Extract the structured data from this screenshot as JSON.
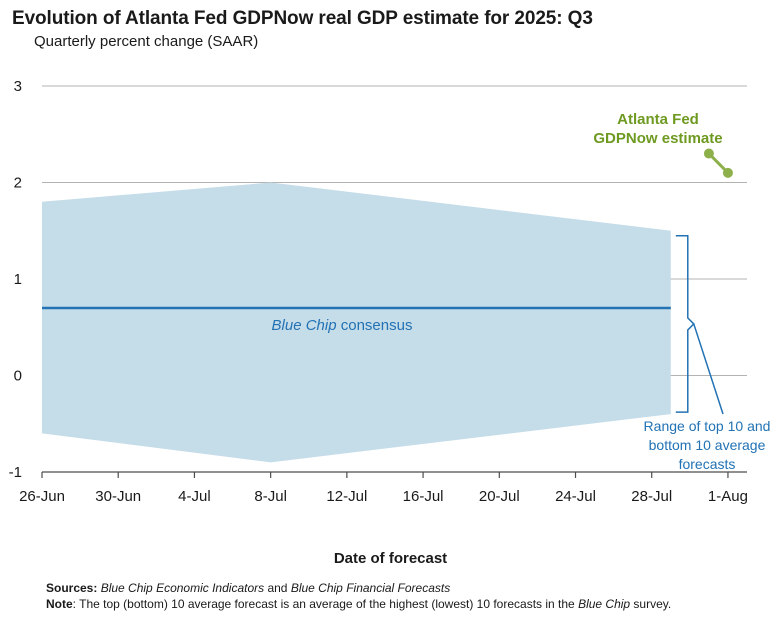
{
  "chart_data": {
    "type": "area",
    "title": "Evolution of Atlanta Fed GDPNow real GDP estimate for 2025: Q3",
    "subtitle": "Quarterly percent change (SAAR)",
    "xlabel": "Date of forecast",
    "ylabel": "",
    "ylim": [
      -1,
      3
    ],
    "yticks": [
      "-1",
      "0",
      "1",
      "2",
      "3"
    ],
    "x_start": "2025-06-26",
    "x_end": "2025-08-02",
    "xticks": [
      {
        "date": "2025-06-26",
        "label": "26-Jun"
      },
      {
        "date": "2025-06-30",
        "label": "30-Jun"
      },
      {
        "date": "2025-07-04",
        "label": "4-Jul"
      },
      {
        "date": "2025-07-08",
        "label": "8-Jul"
      },
      {
        "date": "2025-07-12",
        "label": "12-Jul"
      },
      {
        "date": "2025-07-16",
        "label": "16-Jul"
      },
      {
        "date": "2025-07-20",
        "label": "20-Jul"
      },
      {
        "date": "2025-07-24",
        "label": "24-Jul"
      },
      {
        "date": "2025-07-28",
        "label": "28-Jul"
      },
      {
        "date": "2025-08-01",
        "label": "1-Aug"
      }
    ],
    "grid": true,
    "range_band": {
      "top": [
        {
          "x": "2025-06-26",
          "y": 1.8
        },
        {
          "x": "2025-07-08",
          "y": 2.0
        },
        {
          "x": "2025-07-29",
          "y": 1.5
        }
      ],
      "bottom": [
        {
          "x": "2025-06-26",
          "y": -0.6
        },
        {
          "x": "2025-07-08",
          "y": -0.9
        },
        {
          "x": "2025-07-29",
          "y": -0.4
        }
      ],
      "color": "#c5dce9"
    },
    "series": [
      {
        "name": "Blue Chip consensus",
        "color": "#2272b4",
        "points": [
          {
            "x": "2025-06-26",
            "y": 0.7
          },
          {
            "x": "2025-07-29",
            "y": 0.7
          }
        ]
      },
      {
        "name": "Atlanta Fed GDPNow estimate",
        "color": "#8db04a",
        "points": [
          {
            "x": "2025-07-31",
            "y": 2.3
          },
          {
            "x": "2025-08-01",
            "y": 2.1
          }
        ]
      }
    ],
    "annotations": {
      "consensus_italic": "Blue Chip",
      "consensus_rest": " consensus",
      "gdpnow_line1": "Atlanta Fed",
      "gdpnow_line2": "GDPNow estimate",
      "range_line1": "Range of top 10 and",
      "range_line2": "bottom 10 average",
      "range_line3": "forecasts"
    }
  },
  "notes": {
    "sources_label": "Sources:",
    "sources_italic1": "Blue Chip Economic Indicators",
    "sources_and": " and ",
    "sources_italic2": "Blue Chip Financial Forecasts",
    "note_label": "Note",
    "note_text1": ": The top (bottom) 10 average forecast is an average of the highest (lowest) 10 forecasts in the ",
    "note_italic": "Blue Chip",
    "note_text2": " survey."
  },
  "colors": {
    "band": "#c5dce9",
    "consensus": "#2272b4",
    "gdpnow": "#8db04a",
    "gdpnow_text": "#6f9a22",
    "range_text": "#2272b4",
    "grid": "#b3b3b3",
    "axis": "#4d4d4d"
  }
}
